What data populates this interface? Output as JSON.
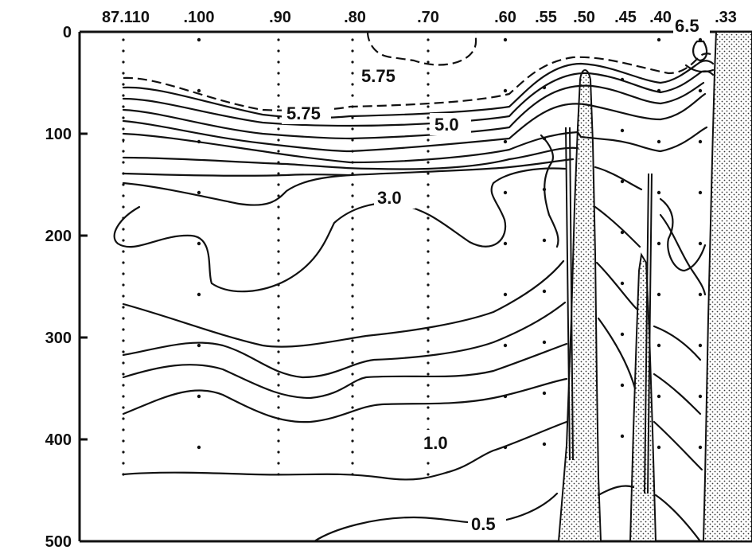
{
  "chart_data": {
    "type": "contour",
    "x_ticks": [
      "87.110",
      ".100",
      ".90",
      ".80",
      ".70",
      ".60",
      ".55",
      ".50",
      ".45",
      ".40",
      ".33"
    ],
    "y_ticks": [
      "0",
      "100",
      "200",
      "300",
      "400",
      "500"
    ],
    "ylim": [
      0,
      500
    ],
    "contour_labels": [
      {
        "text": "5.75",
        "style": "dashed"
      },
      {
        "text": "5.75",
        "style": "solid"
      },
      {
        "text": "5.0",
        "style": "solid"
      },
      {
        "text": "3.0",
        "style": "solid"
      },
      {
        "text": "1.0",
        "style": "solid"
      },
      {
        "text": "0.5",
        "style": "solid"
      },
      {
        "text": "6.5",
        "style": "solid"
      }
    ],
    "grid": false
  }
}
